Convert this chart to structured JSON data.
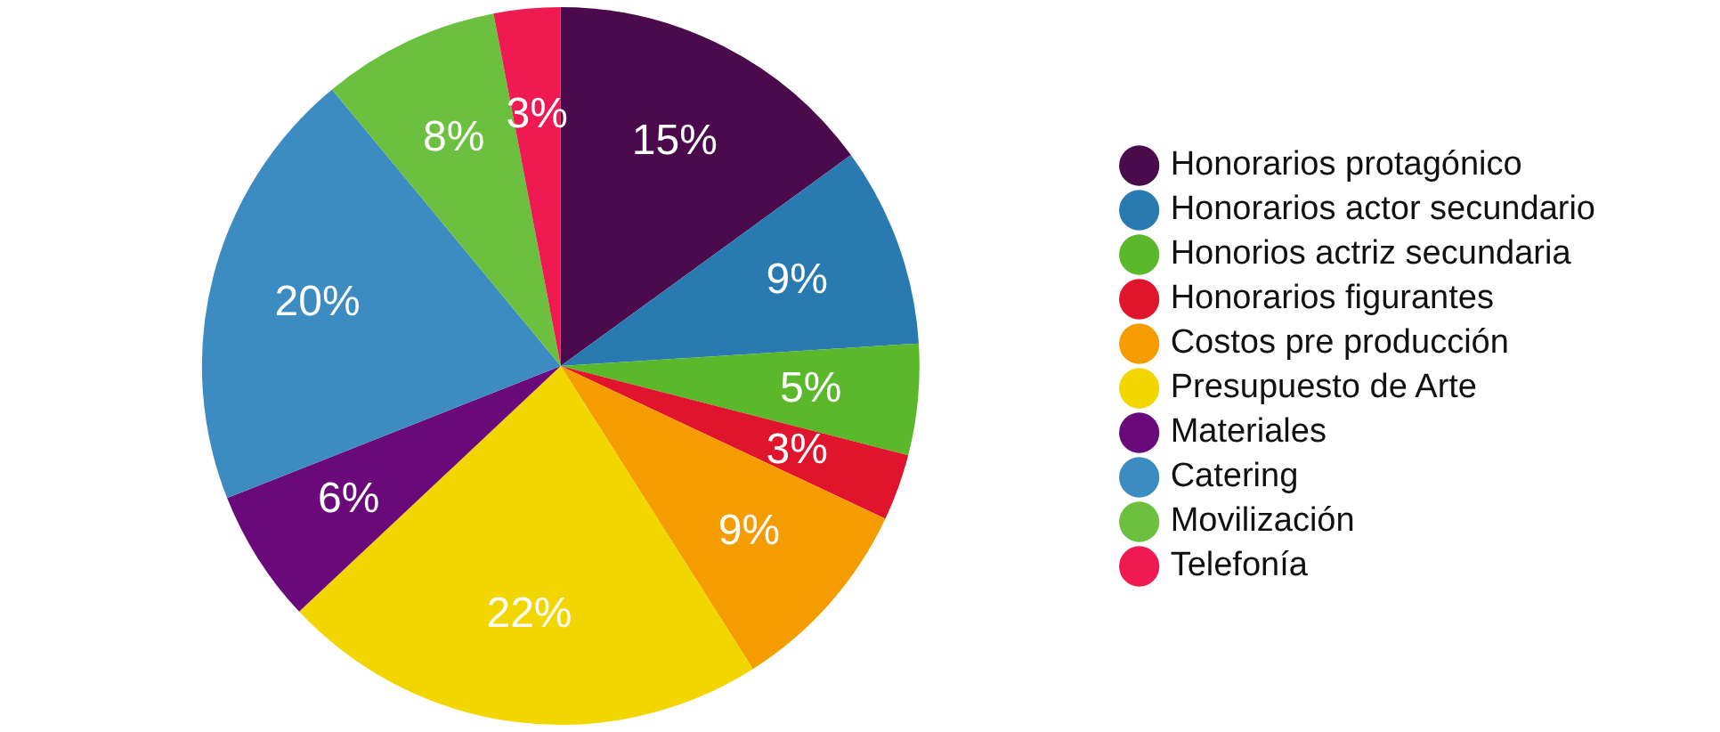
{
  "chart_data": {
    "type": "pie",
    "categories": [
      "Honorarios protagónico",
      "Honorarios actor secundario",
      "Honorios actriz secundaria",
      "Honorarios figurantes",
      "Costos pre producción",
      "Presupuesto de Arte",
      "Materiales",
      "Catering",
      "Movilización",
      "Telefonía"
    ],
    "values": [
      15,
      9,
      5,
      3,
      9,
      22,
      6,
      20,
      8,
      3
    ],
    "colors": [
      "#4a0a4c",
      "#2a7ab2",
      "#5ab82a",
      "#e0142c",
      "#f59c00",
      "#f2d600",
      "#6a0a7a",
      "#3c8cc2",
      "#6cc040",
      "#f01a52"
    ],
    "value_labels": [
      "15%",
      "9%",
      "5%",
      "3%",
      "9%",
      "22%",
      "6%",
      "20%",
      "8%",
      "3%"
    ],
    "legend": "right"
  }
}
